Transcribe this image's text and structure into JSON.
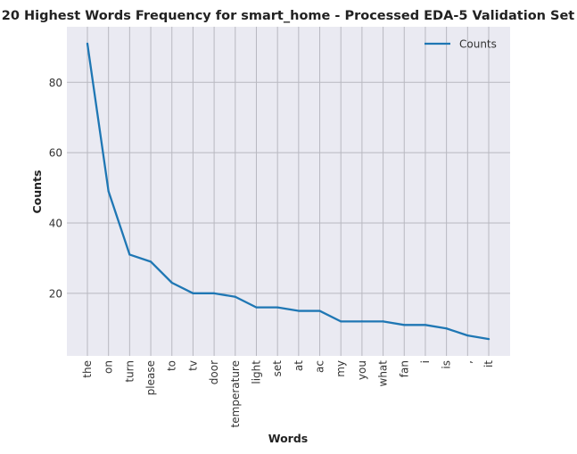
{
  "chart_data": {
    "type": "line",
    "title": "20 Highest Words Frequency for smart_home - Processed EDA-5 Validation Set",
    "xlabel": "Words",
    "ylabel": "Counts",
    "categories": [
      "the",
      "on",
      "turn",
      "please",
      "to",
      "tv",
      "door",
      "temperature",
      "light",
      "set",
      "at",
      "ac",
      "my",
      "you",
      "what",
      "fan",
      "i",
      "is",
      ",",
      "it"
    ],
    "series": [
      {
        "name": "Counts",
        "color": "#1f77b4",
        "values": [
          91,
          49,
          31,
          29,
          23,
          20,
          20,
          19,
          16,
          16,
          15,
          15,
          12,
          12,
          12,
          11,
          11,
          10,
          8,
          7
        ]
      }
    ],
    "y_ticks": [
      20,
      40,
      60,
      80
    ],
    "ylim": [
      2.2,
      95.8
    ],
    "grid": true,
    "legend_position": "top-right"
  }
}
